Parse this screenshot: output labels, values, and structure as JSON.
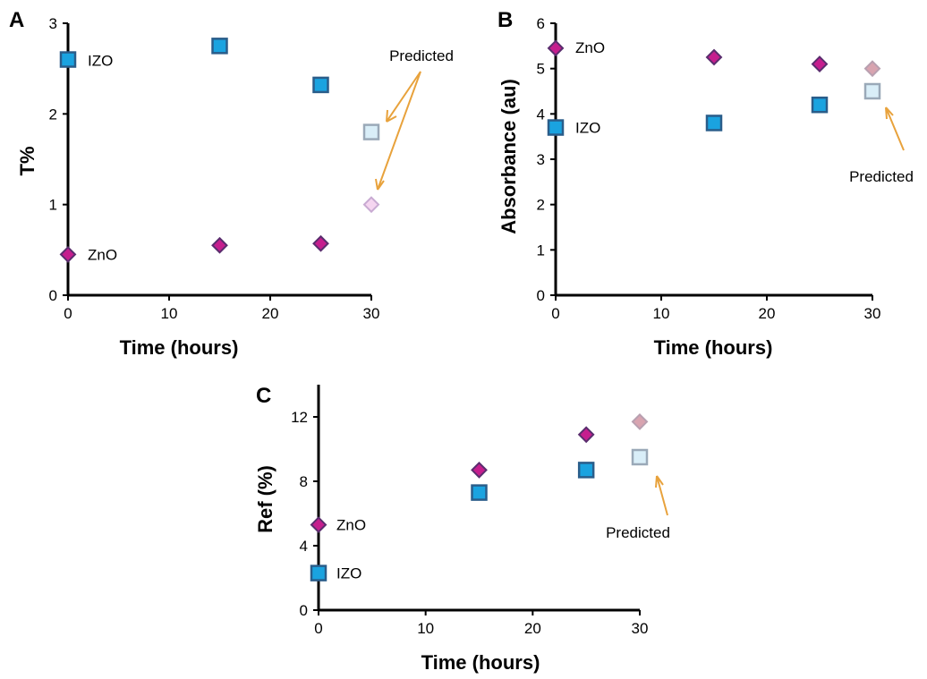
{
  "colors": {
    "izo_fill": "#1aa3e0",
    "izo_stroke": "#2a5d8a",
    "zno_fill": "#c51e8e",
    "zno_stroke": "#5a2d6e",
    "pred_izo_fill": "#d9eef8",
    "pred_izo_stroke": "#9aa9b8",
    "pred_zno_A_fill": "#f5d5f0",
    "pred_zno_A_stroke": "#c8aad2",
    "pred_zno_fill": "#d8a4b0",
    "pred_zno_stroke": "#b8a0b0",
    "arrow": "#e8a23c"
  },
  "chart_data": [
    {
      "panel": "A",
      "type": "scatter",
      "xlabel": "Time (hours)",
      "ylabel": "T%",
      "xlim": [
        0,
        30
      ],
      "ylim": [
        0,
        3
      ],
      "xticks": [
        "0",
        "10",
        "20",
        "30"
      ],
      "yticks": [
        "0",
        "1",
        "2",
        "3"
      ],
      "grid": false,
      "series": [
        {
          "name": "IZO",
          "marker": "square",
          "x": [
            0,
            15,
            25
          ],
          "y": [
            2.6,
            2.75,
            2.32
          ]
        },
        {
          "name": "ZnO",
          "marker": "diamond",
          "x": [
            0,
            15,
            25
          ],
          "y": [
            0.45,
            0.55,
            0.57
          ]
        }
      ],
      "predicted": [
        {
          "series": "IZO",
          "x": 30,
          "y": 1.8
        },
        {
          "series": "ZnO",
          "x": 30,
          "y": 1.0
        }
      ],
      "annotation": "Predicted"
    },
    {
      "panel": "B",
      "type": "scatter",
      "xlabel": "Time (hours)",
      "ylabel": "Absorbance (au)",
      "xlim": [
        0,
        30
      ],
      "ylim": [
        0,
        6
      ],
      "xticks": [
        "0",
        "10",
        "20",
        "30"
      ],
      "yticks": [
        "0",
        "1",
        "2",
        "3",
        "4",
        "5",
        "6"
      ],
      "grid": false,
      "series": [
        {
          "name": "ZnO",
          "marker": "diamond",
          "x": [
            0,
            15,
            25
          ],
          "y": [
            5.45,
            5.25,
            5.1
          ]
        },
        {
          "name": "IZO",
          "marker": "square",
          "x": [
            0,
            15,
            25
          ],
          "y": [
            3.7,
            3.8,
            4.2
          ]
        }
      ],
      "predicted": [
        {
          "series": "ZnO",
          "x": 30,
          "y": 5.0
        },
        {
          "series": "IZO",
          "x": 30,
          "y": 4.5
        }
      ],
      "annotation": "Predicted"
    },
    {
      "panel": "C",
      "type": "scatter",
      "xlabel": "Time (hours)",
      "ylabel": "Ref (%)",
      "xlim": [
        0,
        30
      ],
      "ylim": [
        0,
        14
      ],
      "xticks": [
        "0",
        "10",
        "20",
        "30"
      ],
      "yticks": [
        "0",
        "4",
        "8",
        "12"
      ],
      "grid": false,
      "series": [
        {
          "name": "ZnO",
          "marker": "diamond",
          "x": [
            0,
            15,
            25
          ],
          "y": [
            5.3,
            8.7,
            10.9
          ]
        },
        {
          "name": "IZO",
          "marker": "square",
          "x": [
            0,
            15,
            25
          ],
          "y": [
            2.3,
            7.3,
            8.7
          ]
        }
      ],
      "predicted": [
        {
          "series": "ZnO",
          "x": 30,
          "y": 11.7
        },
        {
          "series": "IZO",
          "x": 30,
          "y": 9.5
        }
      ],
      "annotation": "Predicted"
    }
  ]
}
